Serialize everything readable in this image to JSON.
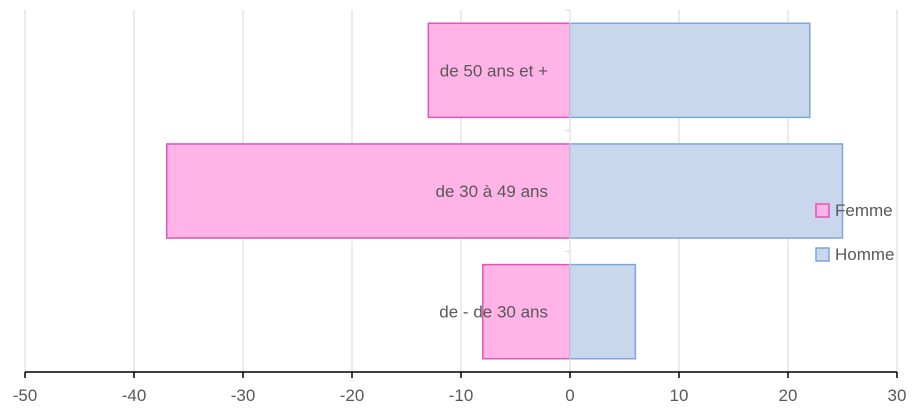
{
  "chart_data": {
    "type": "bar",
    "orientation": "horizontal",
    "categories": [
      "de 50 ans et +",
      "de 30 à 49 ans",
      "de - de 30 ans"
    ],
    "series": [
      {
        "name": "Femme",
        "values": [
          -13,
          -37,
          -8
        ],
        "color": "#ffb3e6",
        "border": "#e055b8"
      },
      {
        "name": "Homme",
        "values": [
          22,
          25,
          6
        ],
        "color": "#c9d7ec",
        "border": "#7ea6d8"
      }
    ],
    "xlim": [
      -50,
      30
    ],
    "xticks": [
      -50,
      -40,
      -30,
      -20,
      -10,
      0,
      10,
      20,
      30
    ],
    "grid": true,
    "legend_position": "right",
    "title": "",
    "xlabel": "",
    "ylabel": ""
  }
}
